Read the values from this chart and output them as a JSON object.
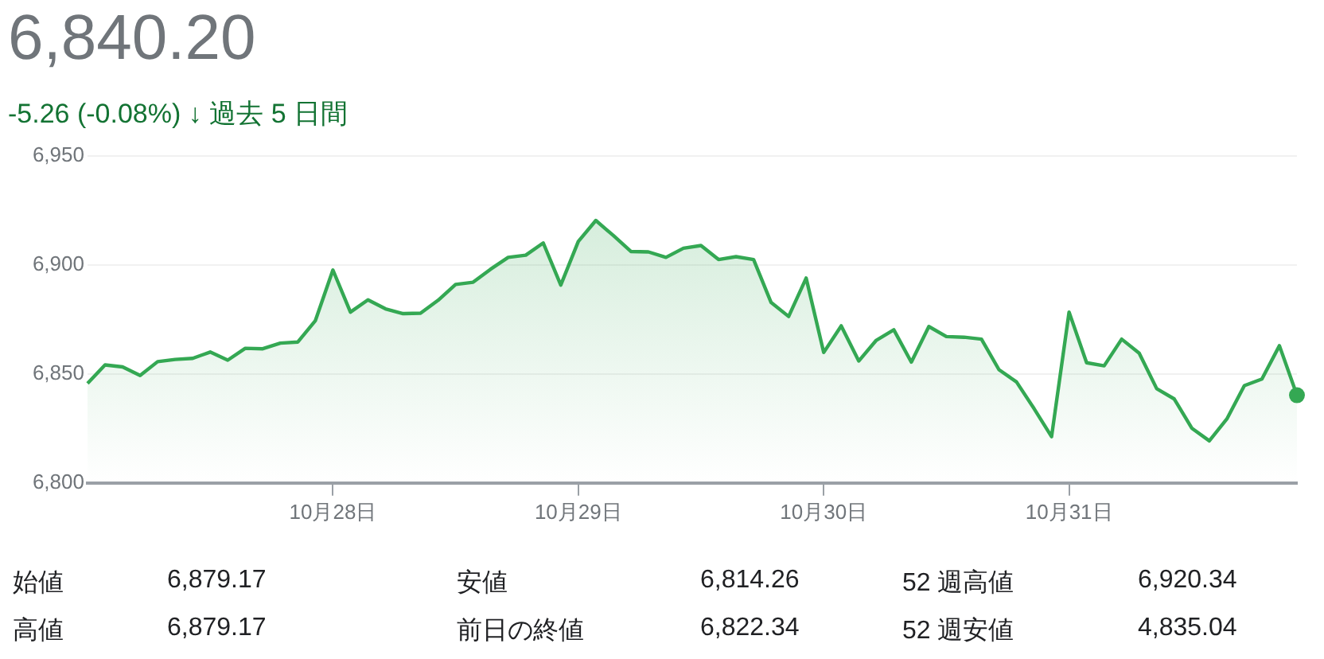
{
  "chart_data": {
    "type": "area",
    "title": "6,840.20",
    "subtitle": "-5.26 (-0.08%) ↓ 過去 5 日間",
    "categories": [
      null,
      null,
      null,
      null,
      null,
      null,
      null,
      null,
      null,
      null,
      null,
      null,
      null,
      null,
      "10月28日",
      null,
      null,
      null,
      null,
      null,
      null,
      null,
      null,
      null,
      null,
      null,
      null,
      null,
      "10月29日",
      null,
      null,
      null,
      null,
      null,
      null,
      null,
      null,
      null,
      null,
      null,
      null,
      null,
      "10月30日",
      null,
      null,
      null,
      null,
      null,
      null,
      null,
      null,
      null,
      null,
      null,
      null,
      null,
      "10月31日",
      null,
      null,
      null,
      null,
      null,
      null,
      null,
      null,
      null,
      null,
      null,
      null,
      null
    ],
    "series": [
      {
        "color": "#34a853",
        "values": [
          6845.6,
          6854.1,
          6853.2,
          6849.3,
          6855.6,
          6856.6,
          6857.1,
          6860.0,
          6856.3,
          6861.7,
          6861.5,
          6864.1,
          6864.6,
          6874.4,
          6897.6,
          6878.3,
          6883.9,
          6879.8,
          6877.6,
          6877.8,
          6883.7,
          6891.0,
          6892.0,
          6898.0,
          6903.4,
          6904.4,
          6910.0,
          6890.7,
          6910.7,
          6920.3,
          6913.4,
          6906.1,
          6905.9,
          6903.4,
          6907.6,
          6908.8,
          6902.4,
          6903.7,
          6902.4,
          6882.7,
          6876.3,
          6893.9,
          6859.8,
          6872.0,
          6855.9,
          6865.4,
          6870.2,
          6855.4,
          6871.7,
          6867.1,
          6866.8,
          6865.9,
          6851.9,
          6846.3,
          6834.1,
          6821.2,
          6878.3,
          6855.1,
          6853.7,
          6865.9,
          6859.5,
          6843.2,
          6838.5,
          6825.1,
          6819.3,
          6829.3,
          6844.6,
          6847.6,
          6862.9,
          6840.2
        ]
      }
    ],
    "ylim": [
      6800,
      6950
    ],
    "yticks": [
      {
        "value": 6800,
        "label": "6,800"
      },
      {
        "value": 6850,
        "label": "6,850"
      },
      {
        "value": 6900,
        "label": "6,900"
      },
      {
        "value": 6950,
        "label": "6,950"
      }
    ],
    "grid": "y",
    "annotations": [
      "始値",
      "6,879.17",
      "安値",
      "6,814.26",
      "52 週高値",
      "6,920.34",
      "高値",
      "6,879.17",
      "前日の終値",
      "6,822.34",
      "52 週安値",
      "4,835.04"
    ]
  }
}
